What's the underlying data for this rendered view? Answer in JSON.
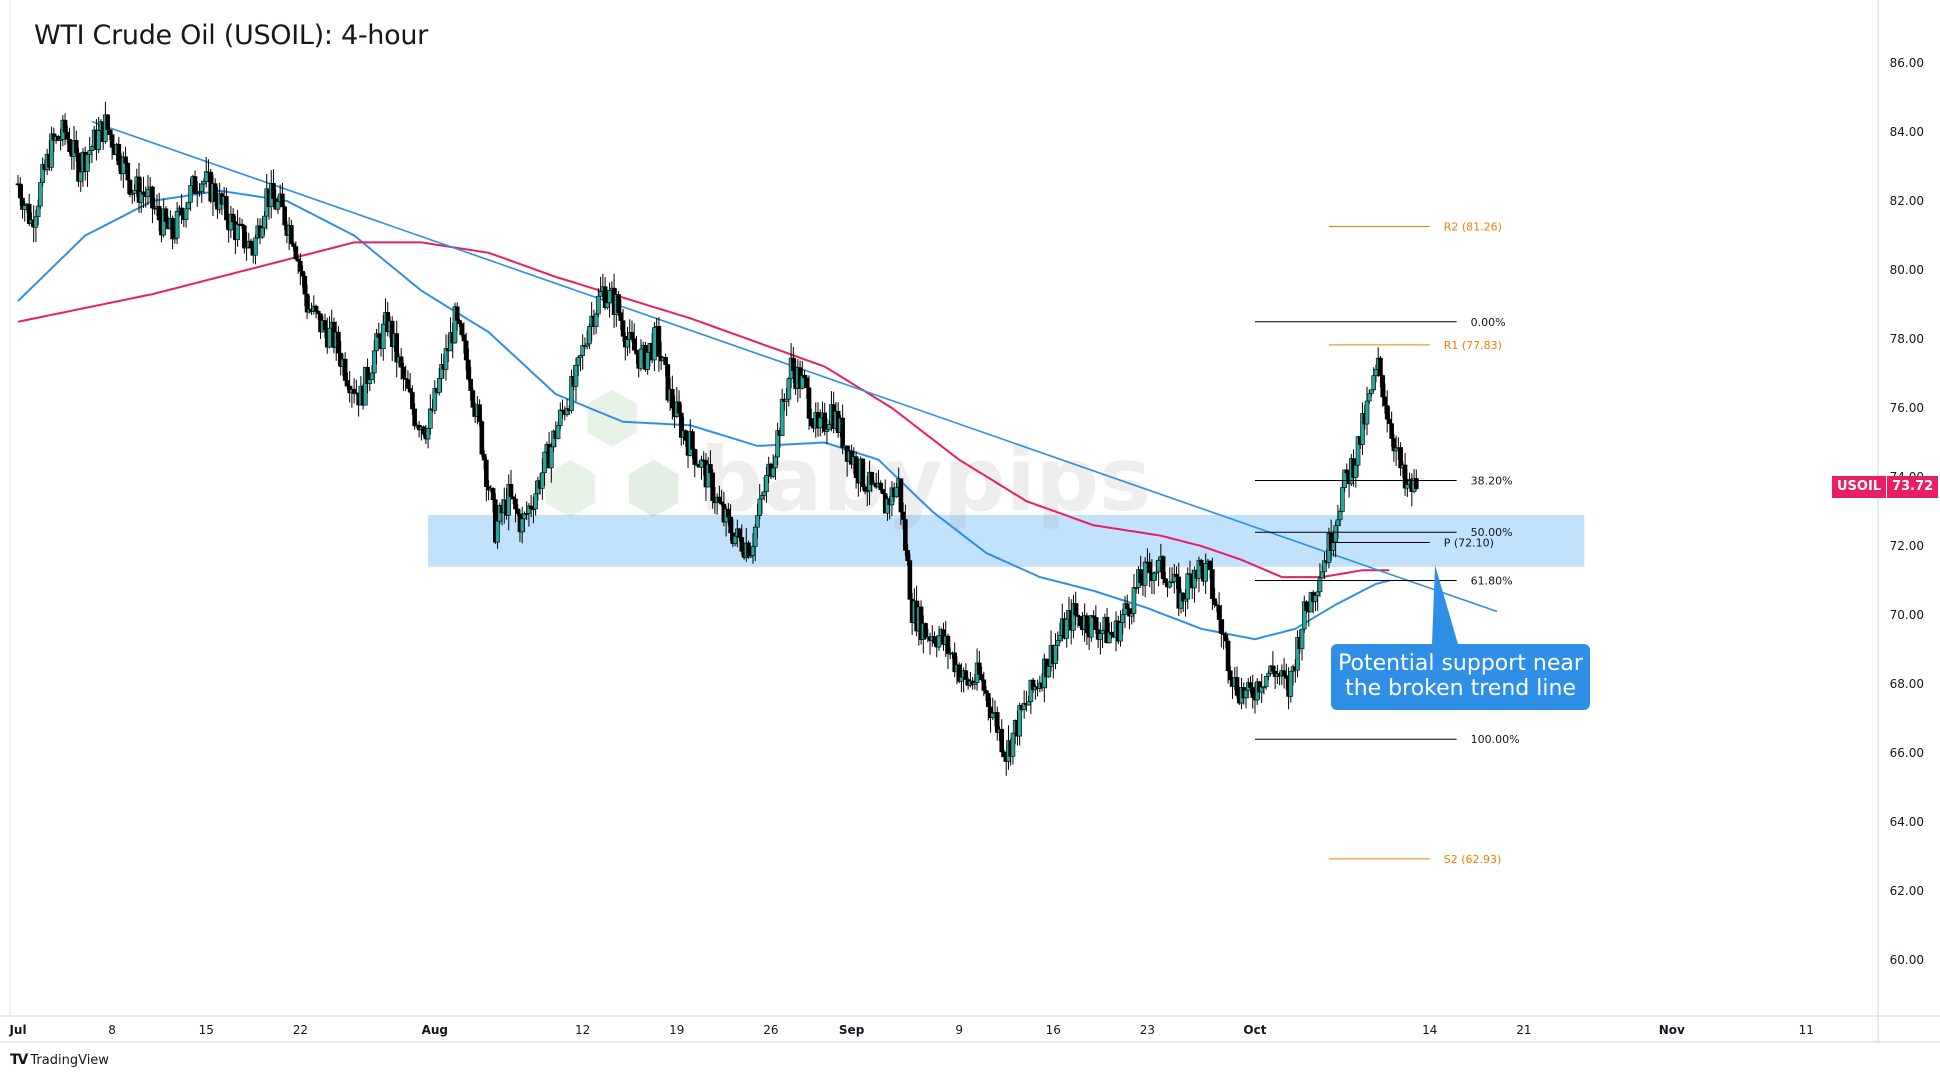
{
  "title": "WTI Crude Oil (USOIL): 4-hour",
  "brand": {
    "icon": "tradingview-logo-icon",
    "label": "TradingView"
  },
  "watermark": "babypips",
  "callout": {
    "line1": "Potential support near",
    "line2": "the broken trend line"
  },
  "price_tag": {
    "symbol": "USOIL",
    "price": "73.72"
  },
  "colors": {
    "up_candle": "#26a69a",
    "down_candle": "#000000",
    "ma_short": "#2f8fe6",
    "ma_long": "#e91e63",
    "trend_line": "#2f8fe6",
    "support_zone": "#bbdefb",
    "pivot_levels": "#f57c00",
    "fib_levels": "#000000",
    "accent": "#e91e63"
  },
  "chart_data": {
    "type": "candlestick",
    "title": "WTI Crude Oil (USOIL): 4-hour",
    "y_axis": {
      "ticks": [
        "86.00",
        "84.00",
        "82.00",
        "80.00",
        "78.00",
        "76.00",
        "74.00",
        "72.00",
        "70.00",
        "68.00",
        "66.00",
        "64.00",
        "62.00",
        "60.00"
      ],
      "range": [
        59,
        87
      ],
      "position": "right"
    },
    "x_axis": {
      "ticks": [
        {
          "label": "Jul",
          "day": 0
        },
        {
          "label": "8",
          "day": 7
        },
        {
          "label": "15",
          "day": 14
        },
        {
          "label": "22",
          "day": 21
        },
        {
          "label": "Aug",
          "day": 31
        },
        {
          "label": "12",
          "day": 42
        },
        {
          "label": "19",
          "day": 49
        },
        {
          "label": "26",
          "day": 56
        },
        {
          "label": "Sep",
          "day": 62
        },
        {
          "label": "9",
          "day": 70
        },
        {
          "label": "16",
          "day": 77
        },
        {
          "label": "23",
          "day": 84
        },
        {
          "label": "Oct",
          "day": 92
        },
        {
          "label": "14",
          "day": 105
        },
        {
          "label": "21",
          "day": 112
        },
        {
          "label": "Nov",
          "day": 123
        },
        {
          "label": "11",
          "day": 133
        }
      ],
      "range": [
        0,
        137
      ]
    },
    "price_path": [
      [
        0.0,
        82.5
      ],
      [
        1.0,
        81.4
      ],
      [
        2.5,
        83.6
      ],
      [
        3.5,
        84.0
      ],
      [
        4.5,
        83.0
      ],
      [
        5.5,
        83.6
      ],
      [
        6.5,
        84.2
      ],
      [
        7.5,
        83.4
      ],
      [
        8.5,
        82.4
      ],
      [
        9.5,
        82.2
      ],
      [
        10.5,
        81.5
      ],
      [
        11.5,
        81.0
      ],
      [
        12.5,
        82.0
      ],
      [
        13.5,
        82.7
      ],
      [
        14.5,
        82.3
      ],
      [
        15.5,
        81.6
      ],
      [
        16.5,
        81.0
      ],
      [
        17.5,
        80.6
      ],
      [
        18.5,
        82.2
      ],
      [
        19.5,
        81.8
      ],
      [
        20.5,
        81.0
      ],
      [
        21.5,
        79.0
      ],
      [
        22.5,
        78.4
      ],
      [
        23.5,
        78.0
      ],
      [
        24.5,
        77.0
      ],
      [
        25.5,
        76.3
      ],
      [
        26.5,
        77.6
      ],
      [
        27.5,
        78.5
      ],
      [
        28.5,
        77.0
      ],
      [
        29.5,
        75.8
      ],
      [
        30.5,
        75.4
      ],
      [
        31.5,
        77.0
      ],
      [
        32.5,
        78.5
      ],
      [
        33.5,
        77.2
      ],
      [
        34.5,
        75.0
      ],
      [
        35.5,
        72.5
      ],
      [
        36.5,
        73.4
      ],
      [
        37.5,
        72.6
      ],
      [
        38.5,
        73.6
      ],
      [
        39.5,
        74.7
      ],
      [
        40.5,
        75.9
      ],
      [
        41.5,
        76.8
      ],
      [
        42.5,
        78.5
      ],
      [
        43.5,
        79.4
      ],
      [
        44.5,
        79.0
      ],
      [
        45.5,
        77.8
      ],
      [
        46.5,
        77.4
      ],
      [
        47.5,
        78.0
      ],
      [
        48.5,
        76.3
      ],
      [
        49.5,
        75.3
      ],
      [
        50.5,
        74.6
      ],
      [
        51.5,
        73.8
      ],
      [
        52.5,
        72.8
      ],
      [
        53.5,
        72.2
      ],
      [
        54.5,
        72.0
      ],
      [
        55.5,
        73.6
      ],
      [
        56.5,
        75.2
      ],
      [
        57.5,
        77.2
      ],
      [
        58.5,
        76.6
      ],
      [
        59.5,
        75.2
      ],
      [
        60.5,
        76.0
      ],
      [
        61.5,
        75.0
      ],
      [
        62.5,
        74.2
      ],
      [
        63.5,
        73.6
      ],
      [
        64.5,
        73.2
      ],
      [
        65.5,
        73.8
      ],
      [
        66.5,
        70.2
      ],
      [
        67.5,
        69.5
      ],
      [
        68.5,
        69.4
      ],
      [
        69.5,
        68.8
      ],
      [
        70.5,
        68.0
      ],
      [
        71.5,
        68.2
      ],
      [
        72.5,
        67.2
      ],
      [
        73.5,
        66.0
      ],
      [
        74.5,
        67.0
      ],
      [
        75.5,
        67.8
      ],
      [
        76.5,
        68.6
      ],
      [
        77.5,
        69.4
      ],
      [
        78.5,
        70.0
      ],
      [
        79.5,
        69.8
      ],
      [
        80.5,
        69.6
      ],
      [
        81.5,
        69.4
      ],
      [
        82.5,
        70.2
      ],
      [
        83.5,
        71.0
      ],
      [
        84.5,
        71.4
      ],
      [
        85.5,
        71.2
      ],
      [
        86.5,
        70.4
      ],
      [
        87.5,
        71.4
      ],
      [
        88.5,
        71.2
      ],
      [
        89.5,
        69.6
      ],
      [
        90.5,
        68.0
      ],
      [
        91.5,
        67.6
      ],
      [
        92.5,
        68.2
      ],
      [
        93.5,
        68.4
      ],
      [
        94.5,
        67.8
      ],
      [
        95.5,
        69.8
      ],
      [
        96.5,
        70.9
      ],
      [
        97.5,
        72.0
      ],
      [
        98.5,
        73.6
      ],
      [
        99.5,
        74.6
      ],
      [
        100.5,
        76.2
      ],
      [
        101.2,
        77.2
      ],
      [
        101.8,
        76.0
      ],
      [
        102.5,
        74.8
      ],
      [
        103.2,
        73.6
      ],
      [
        104.0,
        73.72
      ]
    ],
    "series": [
      {
        "name": "",
        "color": "#2f8fe6",
        "points": [
          [
            0,
            79.1
          ],
          [
            5,
            81.0
          ],
          [
            10,
            82.0
          ],
          [
            15,
            82.3
          ],
          [
            20,
            82.0
          ],
          [
            25,
            81.0
          ],
          [
            30,
            79.4
          ],
          [
            35,
            78.2
          ],
          [
            40,
            76.4
          ],
          [
            45,
            75.6
          ],
          [
            50,
            75.5
          ],
          [
            55,
            74.9
          ],
          [
            60,
            75.0
          ],
          [
            64,
            74.5
          ],
          [
            68,
            73.0
          ],
          [
            72,
            71.8
          ],
          [
            76,
            71.1
          ],
          [
            80,
            70.7
          ],
          [
            84,
            70.2
          ],
          [
            88,
            69.6
          ],
          [
            92,
            69.3
          ],
          [
            95,
            69.6
          ],
          [
            98,
            70.3
          ],
          [
            101,
            70.9
          ],
          [
            102,
            71.0
          ]
        ]
      },
      {
        "name": "",
        "color": "#e91e63",
        "points": [
          [
            0,
            78.5
          ],
          [
            10,
            79.3
          ],
          [
            20,
            80.3
          ],
          [
            25,
            80.8
          ],
          [
            30,
            80.8
          ],
          [
            35,
            80.5
          ],
          [
            40,
            79.8
          ],
          [
            45,
            79.2
          ],
          [
            50,
            78.6
          ],
          [
            55,
            77.9
          ],
          [
            60,
            77.2
          ],
          [
            65,
            76.0
          ],
          [
            70,
            74.5
          ],
          [
            75,
            73.3
          ],
          [
            80,
            72.6
          ],
          [
            85,
            72.3
          ],
          [
            88,
            72.0
          ],
          [
            91,
            71.6
          ],
          [
            94,
            71.1
          ],
          [
            97,
            71.1
          ],
          [
            100,
            71.3
          ],
          [
            102,
            71.3
          ]
        ]
      }
    ],
    "trend_line": {
      "from": [
        5.5,
        84.3
      ],
      "to": [
        110,
        70.1
      ]
    },
    "support_zone": {
      "x_range": [
        30.5,
        116.5
      ],
      "y_range": [
        71.4,
        72.9
      ]
    },
    "fibonacci": [
      {
        "label": "0.00%",
        "value": 78.5
      },
      {
        "label": "38.20%",
        "value": 73.9
      },
      {
        "label": "50.00%",
        "value": 72.4
      },
      {
        "label": "61.80%",
        "value": 71.0
      },
      {
        "label": "100.00%",
        "value": 66.4
      }
    ],
    "fib_x_range": [
      92,
      107
    ],
    "pivots": [
      {
        "label": "R2 (81.26)",
        "value": 81.26,
        "color": "#f57c00"
      },
      {
        "label": "R1 (77.83)",
        "value": 77.83,
        "color": "#f57c00"
      },
      {
        "label": "P (72.10)",
        "value": 72.1,
        "color": "#000000"
      },
      {
        "label": "S2 (62.93)",
        "value": 62.93,
        "color": "#f57c00"
      }
    ],
    "pivot_x_range": [
      97.5,
      105
    ],
    "last_price": 73.72,
    "grid": false,
    "legend": "none"
  }
}
